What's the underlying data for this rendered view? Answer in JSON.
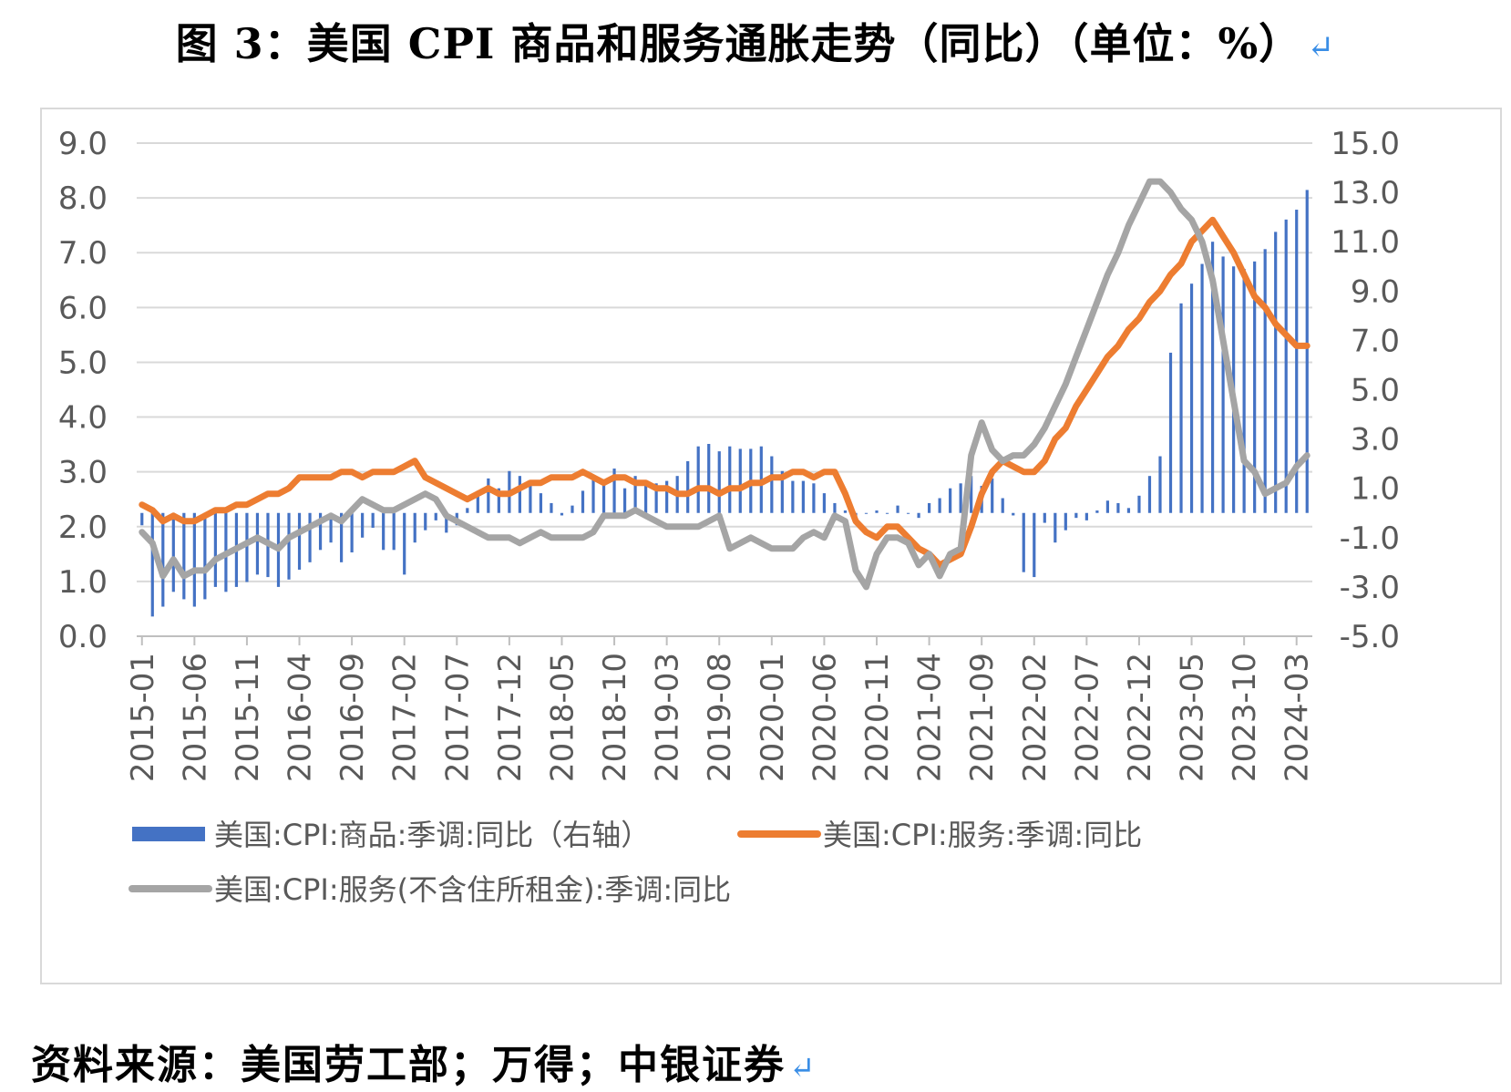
{
  "title": "图 3：美国 CPI 商品和服务通胀走势（同比）（单位：%）",
  "source": "资料来源：美国劳工部；万得；中银证券",
  "chart_data": {
    "type": "bar+line",
    "left_axis": {
      "min": 0,
      "max": 9,
      "ticks": [
        "0.0",
        "1.0",
        "2.0",
        "3.0",
        "4.0",
        "5.0",
        "6.0",
        "7.0",
        "8.0",
        "9.0"
      ]
    },
    "right_axis": {
      "min": -5,
      "max": 15,
      "ticks": [
        "-5.0",
        "-3.0",
        "-1.0",
        "1.0",
        "3.0",
        "5.0",
        "7.0",
        "9.0",
        "11.0",
        "13.0",
        "15.0"
      ]
    },
    "x_tick_labels": [
      "2015-01",
      "2015-06",
      "2015-11",
      "2016-04",
      "2016-09",
      "2017-02",
      "2017-07",
      "2017-12",
      "2018-05",
      "2018-10",
      "2019-03",
      "2019-08",
      "2020-01",
      "2020-06",
      "2020-11",
      "2021-04",
      "2021-09",
      "2022-02",
      "2022-07",
      "2022-12",
      "2023-05",
      "2023-10",
      "2024-03"
    ],
    "months_start": "2015-01",
    "months_count": 112,
    "grid": "horizontal",
    "legend_position": "bottom",
    "series": [
      {
        "name": "美国:CPI:商品:季调:同比（右轴）",
        "type": "bar",
        "axis": "right",
        "color": "#4472c4",
        "values": [
          -0.5,
          -4.2,
          -3.8,
          -3.2,
          -3.5,
          -3.8,
          -3.5,
          -3.0,
          -3.2,
          -3.0,
          -2.8,
          -2.5,
          -2.6,
          -3.0,
          -2.7,
          -2.3,
          -2.0,
          -1.5,
          -1.2,
          -2.0,
          -1.6,
          -1.0,
          -0.6,
          -1.5,
          -1.5,
          -2.5,
          -1.2,
          -0.7,
          -0.3,
          -0.8,
          -0.5,
          0.2,
          0.9,
          1.4,
          1.0,
          1.7,
          1.5,
          1.1,
          0.8,
          0.4,
          -0.1,
          0.3,
          0.9,
          1.4,
          1.2,
          1.8,
          1.0,
          1.5,
          1.2,
          1.2,
          1.3,
          1.5,
          2.1,
          2.7,
          2.8,
          2.5,
          2.7,
          2.6,
          2.6,
          2.7,
          2.3,
          1.7,
          1.3,
          1.3,
          1.2,
          0.8,
          0.4,
          0.1,
          -0.2,
          0.0,
          0.1,
          0.0,
          0.3,
          0.0,
          -0.2,
          0.4,
          0.6,
          1.0,
          1.2,
          1.5,
          1.1,
          1.4,
          0.6,
          -0.1,
          -2.4,
          -2.6,
          -0.4,
          -1.2,
          -0.7,
          -0.2,
          -0.3,
          0.1,
          0.5,
          0.4,
          0.2,
          0.7,
          1.5,
          2.3,
          6.5,
          8.5,
          9.3,
          10.1,
          11.0,
          10.4,
          10.0,
          9.9,
          10.2,
          10.7,
          11.4,
          11.9,
          12.3,
          13.1
        ]
      },
      {
        "name": "美国:CPI:服务:季调:同比",
        "type": "line",
        "axis": "left",
        "color": "#ed7d31",
        "values": [
          2.4,
          2.3,
          2.1,
          2.2,
          2.1,
          2.1,
          2.2,
          2.3,
          2.3,
          2.4,
          2.4,
          2.5,
          2.6,
          2.6,
          2.7,
          2.9,
          2.9,
          2.9,
          2.9,
          3.0,
          3.0,
          2.9,
          3.0,
          3.0,
          3.0,
          3.1,
          3.2,
          2.9,
          2.8,
          2.7,
          2.6,
          2.5,
          2.6,
          2.7,
          2.6,
          2.6,
          2.7,
          2.8,
          2.8,
          2.9,
          2.9,
          2.9,
          3.0,
          2.9,
          2.8,
          2.9,
          2.9,
          2.8,
          2.8,
          2.7,
          2.7,
          2.6,
          2.6,
          2.7,
          2.7,
          2.6,
          2.7,
          2.7,
          2.8,
          2.8,
          2.9,
          2.9,
          3.0,
          3.0,
          2.9,
          3.0,
          3.0,
          2.6,
          2.1,
          1.9,
          1.8,
          2.0,
          2.0,
          1.8,
          1.6,
          1.5,
          1.3,
          1.4,
          1.5,
          2.0,
          2.6,
          3.0,
          3.2,
          3.1,
          3.0,
          3.0,
          3.2,
          3.6,
          3.8,
          4.2,
          4.5,
          4.8,
          5.1,
          5.3,
          5.6,
          5.8,
          6.1,
          6.3,
          6.6,
          6.8,
          7.2,
          7.4,
          7.6,
          7.3,
          7.0,
          6.6,
          6.2,
          6.0,
          5.7,
          5.5,
          5.3,
          5.3
        ]
      },
      {
        "name": "美国:CPI:服务(不含住所租金):季调:同比",
        "type": "line",
        "axis": "left",
        "color": "#a5a5a5",
        "values": [
          1.9,
          1.7,
          1.1,
          1.4,
          1.1,
          1.2,
          1.2,
          1.4,
          1.5,
          1.6,
          1.7,
          1.8,
          1.7,
          1.6,
          1.8,
          1.9,
          2.0,
          2.1,
          2.2,
          2.1,
          2.3,
          2.5,
          2.4,
          2.3,
          2.3,
          2.4,
          2.5,
          2.6,
          2.5,
          2.2,
          2.1,
          2.0,
          1.9,
          1.8,
          1.8,
          1.8,
          1.7,
          1.8,
          1.9,
          1.8,
          1.8,
          1.8,
          1.8,
          1.9,
          2.2,
          2.2,
          2.2,
          2.3,
          2.2,
          2.1,
          2.0,
          2.0,
          2.0,
          2.0,
          2.1,
          2.2,
          1.6,
          1.7,
          1.8,
          1.7,
          1.6,
          1.6,
          1.6,
          1.8,
          1.9,
          1.8,
          2.2,
          2.1,
          1.2,
          0.9,
          1.5,
          1.8,
          1.8,
          1.7,
          1.3,
          1.5,
          1.1,
          1.5,
          1.6,
          3.3,
          3.9,
          3.4,
          3.2,
          3.3,
          3.3,
          3.5,
          3.8,
          4.2,
          4.6,
          5.1,
          5.6,
          6.1,
          6.6,
          7.0,
          7.5,
          7.9,
          8.3,
          8.3,
          8.1,
          7.8,
          7.6,
          7.2,
          6.5,
          5.4,
          4.3,
          3.2,
          3.0,
          2.6,
          2.7,
          2.8,
          3.1,
          3.3
        ]
      }
    ]
  }
}
